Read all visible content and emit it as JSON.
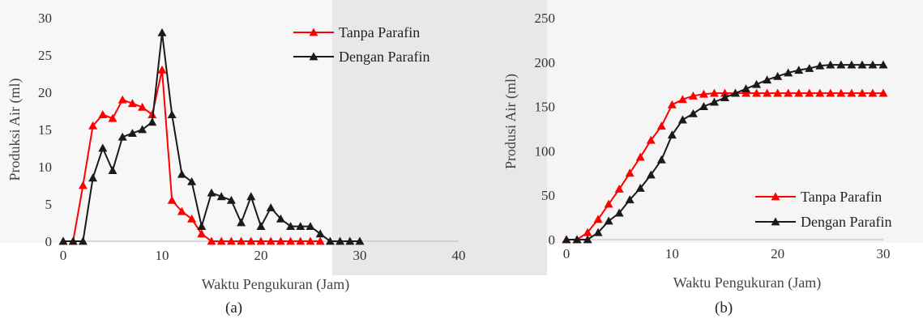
{
  "background": {
    "watermark_color": "#e8e8ea",
    "base_color": "#f5f5f6"
  },
  "chart_data": [
    {
      "type": "line",
      "panel_label": "(a)",
      "xlabel": "Waktu Pengukuran (Jam)",
      "ylabel": "Produksi Air (ml)",
      "xlim": [
        0,
        40
      ],
      "ylim": [
        0,
        30
      ],
      "xticks": [
        0,
        10,
        20,
        30,
        40
      ],
      "yticks": [
        0,
        5,
        10,
        15,
        20,
        25,
        30
      ],
      "grid": false,
      "legend_position": "top-right",
      "series": [
        {
          "name": "Tanpa Parafin",
          "color": "#ff0000",
          "marker": "triangle",
          "x": [
            0,
            1,
            2,
            3,
            4,
            5,
            6,
            7,
            8,
            9,
            10,
            11,
            12,
            13,
            14,
            15,
            16,
            17,
            18,
            19,
            20,
            21,
            22,
            23,
            24,
            25,
            26
          ],
          "y": [
            0,
            0,
            7.5,
            15.5,
            17,
            16.5,
            19,
            18.5,
            18,
            17,
            23,
            5.5,
            4,
            3,
            1,
            0,
            0,
            0,
            0,
            0,
            0,
            0,
            0,
            0,
            0,
            0,
            0
          ]
        },
        {
          "name": "Dengan Parafin",
          "color": "#1a1a1a",
          "marker": "triangle",
          "x": [
            0,
            1,
            2,
            3,
            4,
            5,
            6,
            7,
            8,
            9,
            10,
            11,
            12,
            13,
            14,
            15,
            16,
            17,
            18,
            19,
            20,
            21,
            22,
            23,
            24,
            25,
            26,
            27,
            28,
            29,
            30
          ],
          "y": [
            0,
            0,
            0,
            8.5,
            12.5,
            9.5,
            14,
            14.5,
            15,
            16,
            28,
            17,
            9,
            8,
            2,
            6.5,
            6,
            5.5,
            2.5,
            6,
            2,
            4.5,
            3,
            2,
            2,
            2,
            1,
            0,
            0,
            0,
            0
          ]
        }
      ]
    },
    {
      "type": "line",
      "panel_label": "(b)",
      "xlabel": "Waktu Pengukuran (Jam)",
      "ylabel": "Produsi Air (ml)",
      "xlim": [
        0,
        30
      ],
      "ylim": [
        0,
        250
      ],
      "xticks": [
        0,
        10,
        20,
        30
      ],
      "yticks": [
        0,
        50,
        100,
        150,
        200,
        250
      ],
      "grid": false,
      "legend_position": "bottom-right",
      "series": [
        {
          "name": "Tanpa Parafin",
          "color": "#ff0000",
          "marker": "triangle",
          "x": [
            0,
            1,
            2,
            3,
            4,
            5,
            6,
            7,
            8,
            9,
            10,
            11,
            12,
            13,
            14,
            15,
            16,
            17,
            18,
            19,
            20,
            21,
            22,
            23,
            24,
            25,
            26,
            27,
            28,
            29,
            30
          ],
          "y": [
            0,
            0,
            8,
            23,
            40,
            57,
            75,
            93,
            112,
            128,
            152,
            158,
            162,
            164,
            165,
            165,
            165,
            165,
            165,
            165,
            165,
            165,
            165,
            165,
            165,
            165,
            165,
            165,
            165,
            165,
            165
          ]
        },
        {
          "name": "Dengan Parafin",
          "color": "#1a1a1a",
          "marker": "triangle",
          "x": [
            0,
            1,
            2,
            3,
            4,
            5,
            6,
            7,
            8,
            9,
            10,
            11,
            12,
            13,
            14,
            15,
            16,
            17,
            18,
            19,
            20,
            21,
            22,
            23,
            24,
            25,
            26,
            27,
            28,
            29,
            30
          ],
          "y": [
            0,
            0,
            0,
            8,
            21,
            30,
            45,
            58,
            73,
            90,
            118,
            135,
            142,
            150,
            155,
            160,
            165,
            170,
            175,
            180,
            184,
            188,
            191,
            193,
            196,
            197,
            197,
            197,
            197,
            197,
            197
          ]
        }
      ]
    }
  ]
}
